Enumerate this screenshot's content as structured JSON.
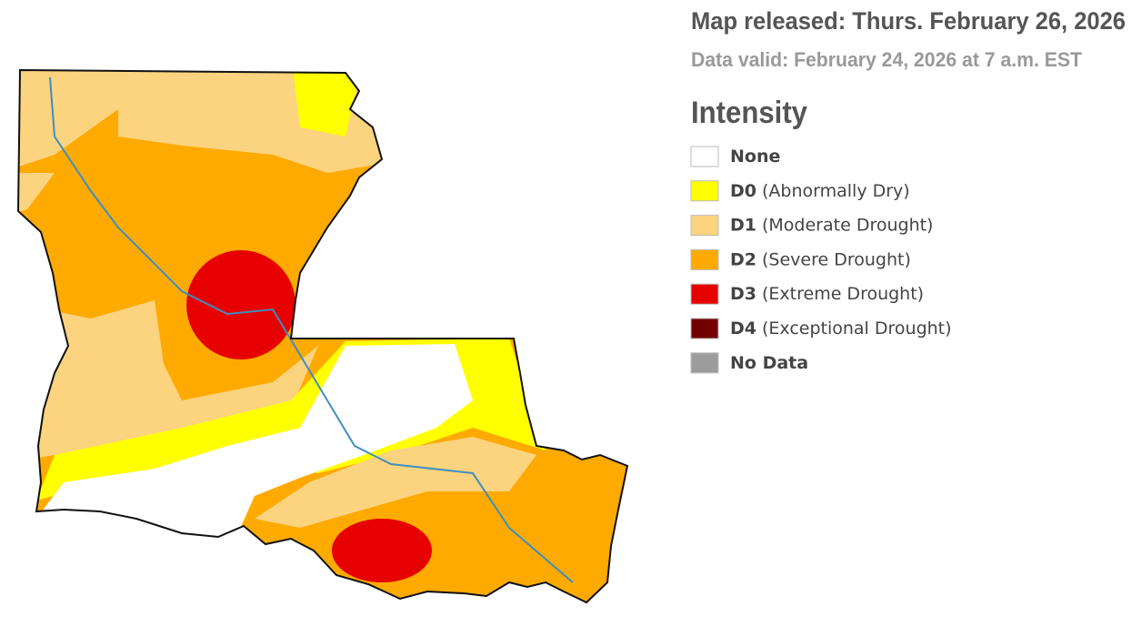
{
  "header": {
    "released": "Map released: Thurs. February 26, 2026",
    "valid": "Data valid: February 24, 2026 at 7 a.m. EST"
  },
  "legend": {
    "title": "Intensity",
    "items": [
      {
        "code": "None",
        "color": "#ffffff"
      },
      {
        "code": "D0",
        "label": "(Abnormally Dry)",
        "color": "#ffff00"
      },
      {
        "code": "D1",
        "label": "(Moderate Drought)",
        "color": "#fcd37f"
      },
      {
        "code": "D2",
        "label": "(Severe Drought)",
        "color": "#ffaa00"
      },
      {
        "code": "D3",
        "label": "(Extreme Drought)",
        "color": "#e60000"
      },
      {
        "code": "D4",
        "label": "(Exceptional Drought)",
        "color": "#730000"
      },
      {
        "code": "No Data",
        "color": "#9c9c9c"
      }
    ]
  }
}
